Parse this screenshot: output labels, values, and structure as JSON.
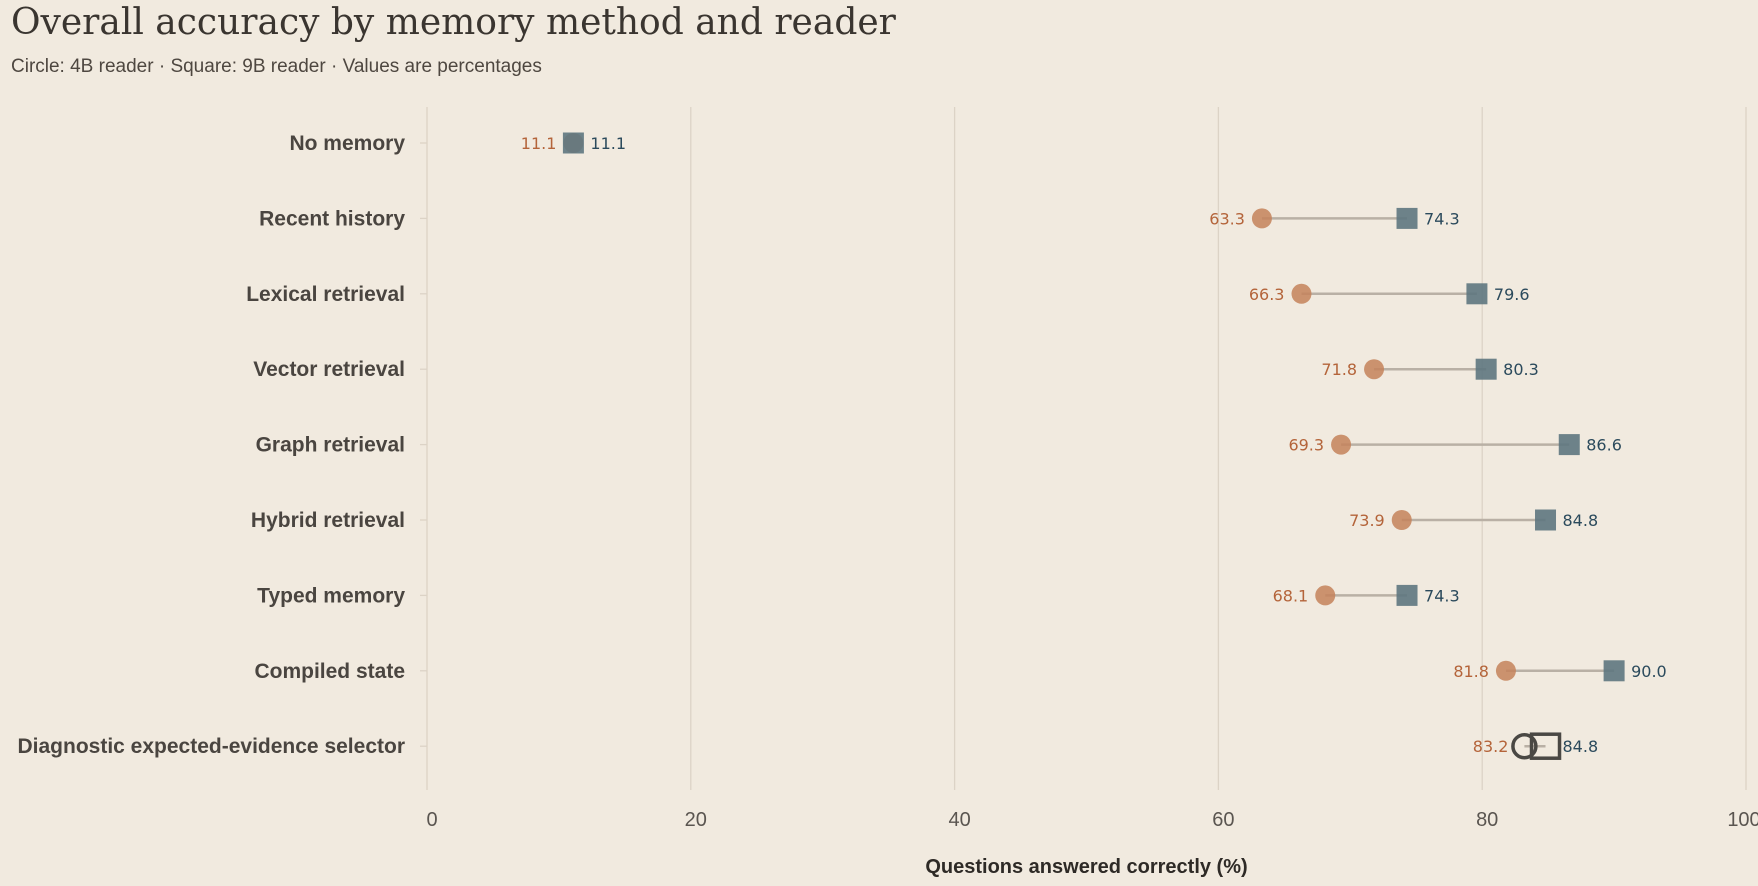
{
  "chart_data": {
    "type": "scatter",
    "title": "Overall accuracy by memory method and reader",
    "subtitle": "Circle: 4B reader · Square: 9B reader · Values are percentages",
    "xlabel": "Questions answered correctly (%)",
    "xlim": [
      0,
      100
    ],
    "xticks": [
      "0",
      "20",
      "40",
      "60",
      "80",
      "100"
    ],
    "grid": true,
    "categories": [
      "No memory",
      "Recent history",
      "Lexical retrieval",
      "Vector retrieval",
      "Graph retrieval",
      "Hybrid retrieval",
      "Typed memory",
      "Compiled state",
      "Diagnostic expected-evidence selector"
    ],
    "series": [
      {
        "marker": "circle",
        "values": [
          11.1,
          63.3,
          66.3,
          71.8,
          69.3,
          73.9,
          68.1,
          81.8,
          83.2
        ],
        "labels": [
          "11.1",
          "63.3",
          "66.3",
          "71.8",
          "69.3",
          "73.9",
          "68.1",
          "81.8",
          "83.2"
        ]
      },
      {
        "marker": "square",
        "values": [
          11.1,
          74.3,
          79.6,
          80.3,
          86.6,
          84.8,
          74.3,
          90.0,
          84.8
        ],
        "labels": [
          "11.1",
          "74.3",
          "79.6",
          "80.3",
          "86.6",
          "84.8",
          "74.3",
          "90.0",
          "84.8"
        ]
      }
    ],
    "highlight_category": "Diagnostic expected-evidence selector"
  },
  "colors": {
    "background": "#f1eadf",
    "circle_fill": "#c4825b",
    "circle_label": "#b4643a",
    "square_fill": "#5e7780",
    "square_label": "#2b4a5c",
    "connector": "#b9b0a5",
    "grid": "#dcd3c6",
    "highlight_outline": "#4a4844"
  }
}
